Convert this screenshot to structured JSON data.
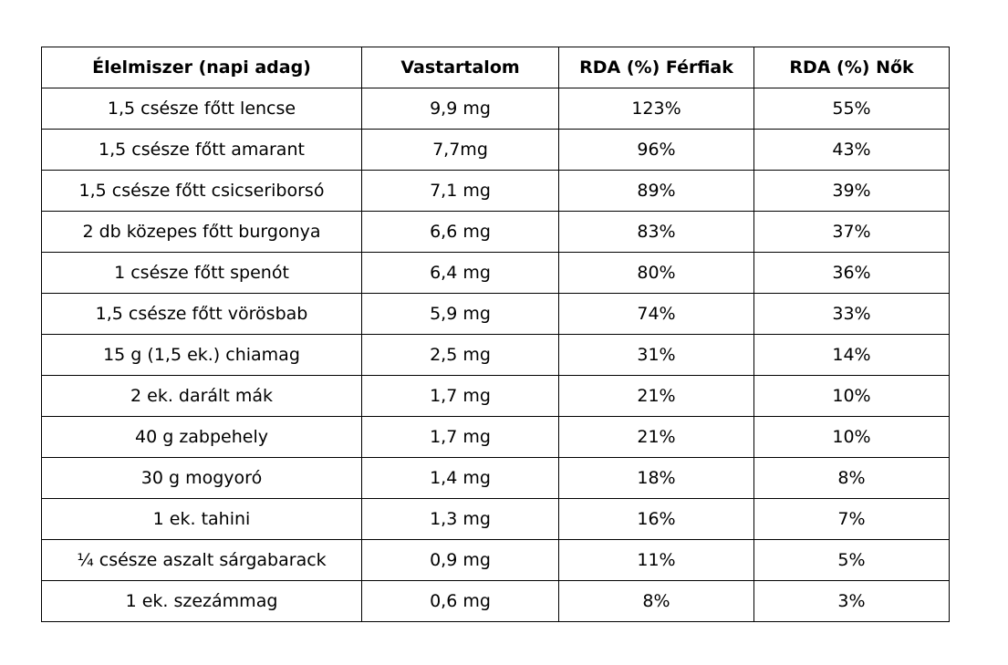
{
  "table": {
    "headers": [
      "Élelmiszer (napi adag)",
      "Vastartalom",
      "RDA (%) Férfiak",
      "RDA (%) Nők"
    ],
    "rows": [
      [
        "1,5 csésze főtt lencse",
        "9,9 mg",
        "123%",
        "55%"
      ],
      [
        "1,5 csésze főtt amarant",
        "7,7mg",
        "96%",
        "43%"
      ],
      [
        "1,5 csésze főtt csicseriborsó",
        "7,1 mg",
        "89%",
        "39%"
      ],
      [
        "2 db közepes főtt burgonya",
        "6,6 mg",
        "83%",
        "37%"
      ],
      [
        "1 csésze főtt spenót",
        "6,4 mg",
        "80%",
        "36%"
      ],
      [
        "1,5 csésze főtt vörösbab",
        "5,9 mg",
        "74%",
        "33%"
      ],
      [
        "15 g (1,5 ek.) chiamag",
        "2,5 mg",
        "31%",
        "14%"
      ],
      [
        "2 ek. darált mák",
        "1,7 mg",
        "21%",
        "10%"
      ],
      [
        "40 g zabpehely",
        "1,7 mg",
        "21%",
        "10%"
      ],
      [
        "30 g mogyoró",
        "1,4 mg",
        "18%",
        "8%"
      ],
      [
        "1 ek. tahini",
        "1,3 mg",
        "16%",
        "7%"
      ],
      [
        "¼ csésze aszalt sárgabarack",
        "0,9 mg",
        "11%",
        "5%"
      ],
      [
        "1 ek. szezámmag",
        "0,6 mg",
        "8%",
        "3%"
      ]
    ]
  }
}
